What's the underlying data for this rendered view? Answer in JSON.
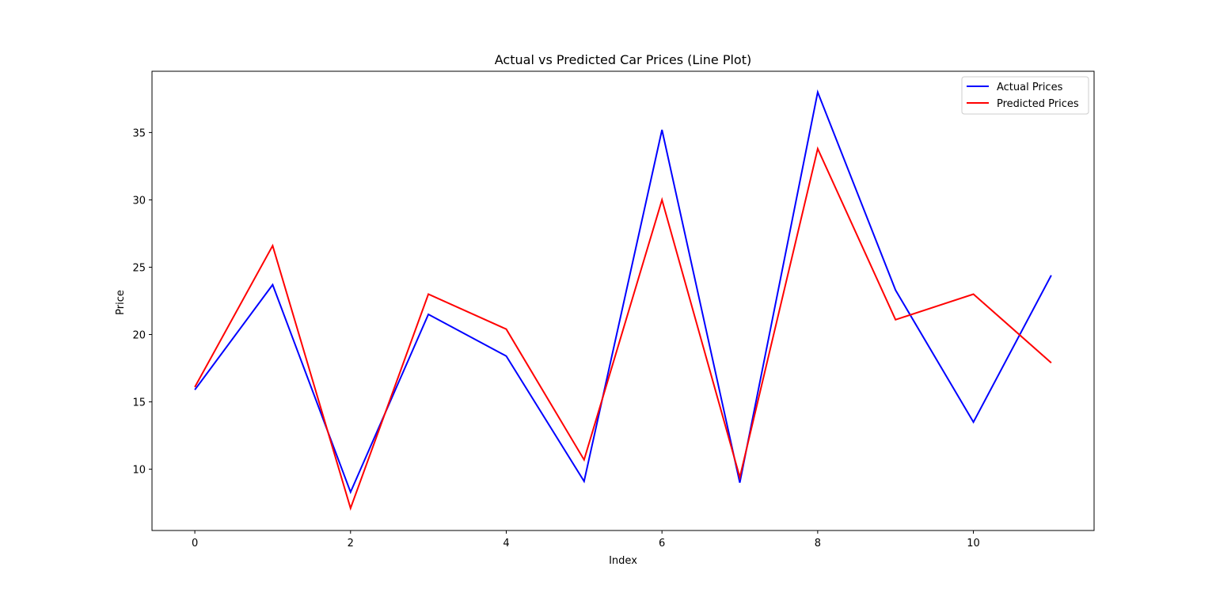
{
  "chart_data": {
    "type": "line",
    "title": "Actual vs Predicted Car Prices (Line Plot)",
    "xlabel": "Index",
    "ylabel": "Price",
    "x": [
      0,
      1,
      2,
      3,
      4,
      5,
      6,
      7,
      8,
      9,
      10,
      11
    ],
    "xlim": [
      -0.55,
      11.55
    ],
    "ylim": [
      5.45,
      39.55
    ],
    "xticks": [
      0,
      2,
      4,
      6,
      8,
      10
    ],
    "yticks": [
      10,
      15,
      20,
      25,
      30,
      35
    ],
    "grid": false,
    "legend_position": "top-right",
    "series": [
      {
        "name": "Actual Prices",
        "color": "#0000ff",
        "values": [
          15.9,
          23.7,
          8.3,
          21.5,
          18.4,
          9.1,
          35.2,
          9.0,
          38.0,
          23.3,
          13.5,
          24.4
        ]
      },
      {
        "name": "Predicted Prices",
        "color": "#ff0000",
        "values": [
          16.1,
          26.6,
          7.1,
          23.0,
          20.4,
          10.7,
          30.0,
          9.4,
          33.8,
          21.1,
          23.0,
          17.9
        ]
      }
    ]
  }
}
